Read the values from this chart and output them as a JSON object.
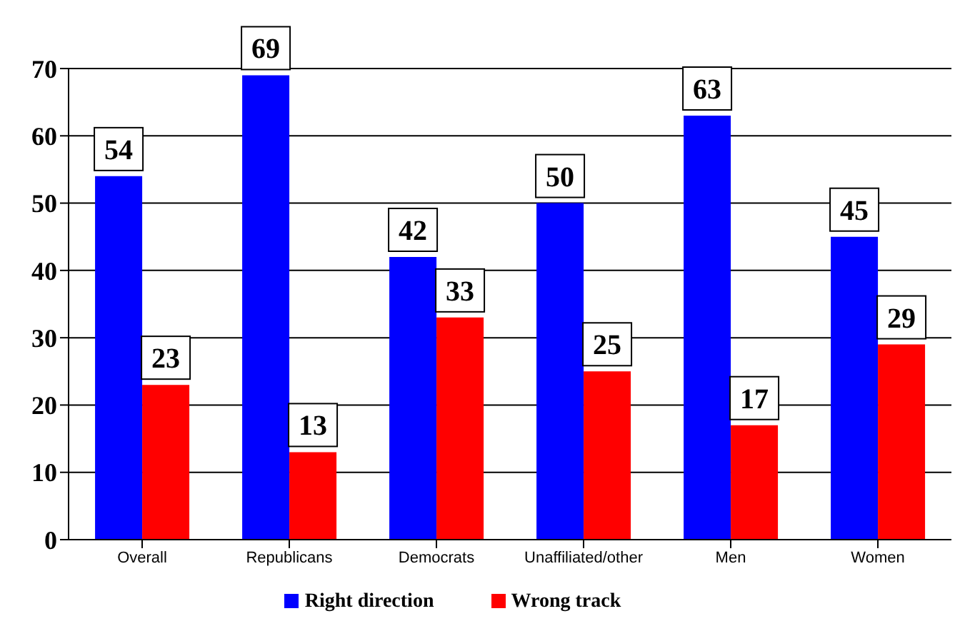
{
  "chart_data": {
    "type": "bar",
    "categories": [
      "Overall",
      "Republicans",
      "Democrats",
      "Unaffiliated/other",
      "Men",
      "Women"
    ],
    "series": [
      {
        "name": "Right direction",
        "color": "#0000ff",
        "values": [
          54,
          69,
          42,
          50,
          63,
          45
        ]
      },
      {
        "name": "Wrong track",
        "color": "#ff0000",
        "values": [
          23,
          13,
          33,
          25,
          17,
          29
        ]
      }
    ],
    "ylim": [
      0,
      70
    ],
    "yticks": [
      0,
      10,
      20,
      30,
      40,
      50,
      60,
      70
    ],
    "grid": "y",
    "legend": "bottom",
    "data_labels": true
  }
}
